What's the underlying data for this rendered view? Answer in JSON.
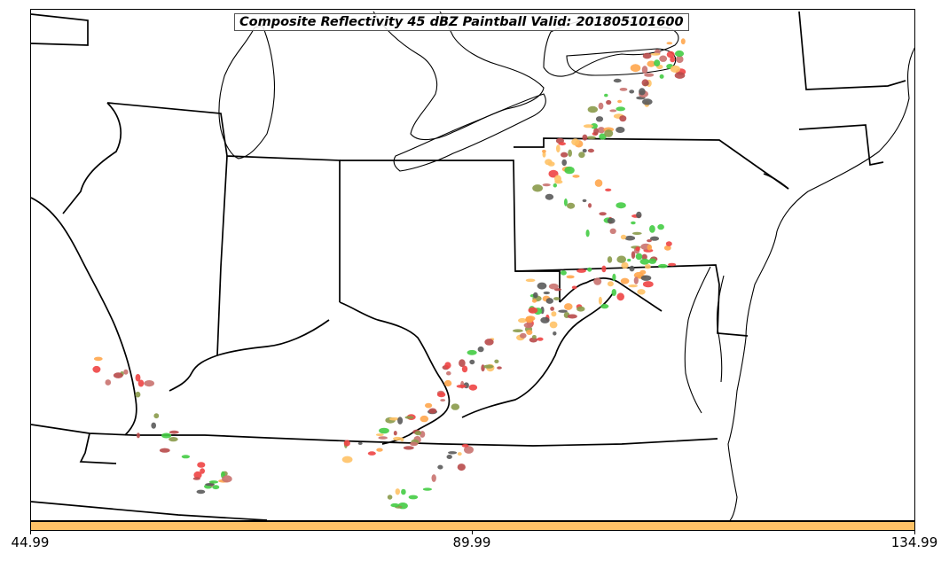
{
  "title": "Composite Reflectivity 45 dBZ Paintball Valid: 201805101600",
  "colorbar": {
    "color": "#ffc266",
    "ticks": [
      "44.99",
      "89.99",
      "134.99"
    ]
  },
  "colors": {
    "orange": "#ffa64d",
    "light_orange": "#ffc266",
    "red": "#ee4444",
    "dark_red": "#b84a4a",
    "gray": "#5a5a5a",
    "green": "#44cc44",
    "olive": "#8a9a4a",
    "rose": "#c9726f"
  }
}
